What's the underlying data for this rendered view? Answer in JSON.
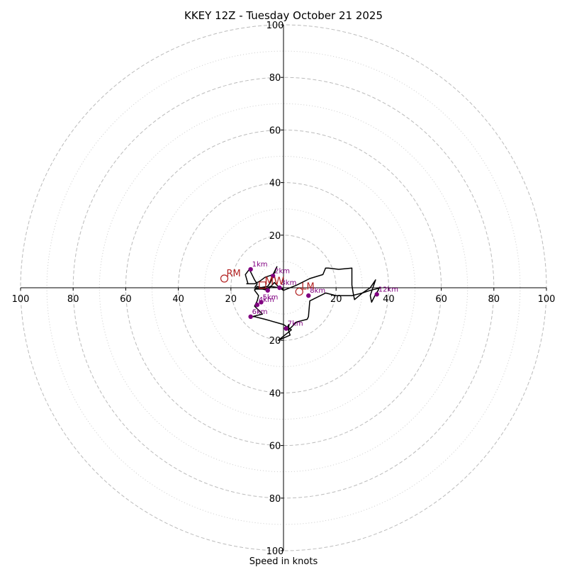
{
  "chart_data": {
    "type": "hodograph",
    "title": "KKEY 12Z - Tuesday October 21 2025",
    "xlabel": "Speed in knots",
    "xlim": [
      -100,
      100
    ],
    "ylim": [
      -100,
      100
    ],
    "rings": {
      "major": [
        20,
        40,
        60,
        80,
        100
      ],
      "minor": [
        10,
        30,
        50,
        70,
        90
      ],
      "major_color": "#bbbbbb",
      "minor_color": "#cccccc"
    },
    "axis_ticks": {
      "x": [
        {
          "value": -100,
          "label": "100"
        },
        {
          "value": -80,
          "label": "80"
        },
        {
          "value": -60,
          "label": "60"
        },
        {
          "value": -40,
          "label": "40"
        },
        {
          "value": -20,
          "label": "20"
        },
        {
          "value": 20,
          "label": "20"
        },
        {
          "value": 40,
          "label": "40"
        },
        {
          "value": 60,
          "label": "60"
        },
        {
          "value": 80,
          "label": "80"
        },
        {
          "value": 100,
          "label": "100"
        }
      ],
      "y": [
        {
          "value": 100,
          "label": "100"
        },
        {
          "value": 80,
          "label": "80"
        },
        {
          "value": 60,
          "label": "60"
        },
        {
          "value": 40,
          "label": "40"
        },
        {
          "value": 20,
          "label": "20"
        },
        {
          "value": -20,
          "label": "20"
        },
        {
          "value": -40,
          "label": "40"
        },
        {
          "value": -60,
          "label": "60"
        },
        {
          "value": -80,
          "label": "80"
        },
        {
          "value": -100,
          "label": "100"
        }
      ]
    },
    "trace": {
      "color": "#000000",
      "points": [
        [
          -11,
          0
        ],
        [
          -10,
          1.5
        ],
        [
          -11,
          3
        ],
        [
          -12,
          5
        ],
        [
          -13,
          7
        ],
        [
          -14.5,
          5
        ],
        [
          -13.5,
          1.5
        ],
        [
          -14,
          1.5
        ],
        [
          -11,
          1.5
        ],
        [
          -9,
          2.5
        ],
        [
          -7,
          4
        ],
        [
          -4,
          5
        ],
        [
          -2.5,
          8
        ],
        [
          -5,
          2
        ],
        [
          -6,
          0.5
        ],
        [
          -9,
          0
        ],
        [
          -11,
          -0.5
        ],
        [
          -8,
          -0.5
        ],
        [
          -6,
          -1
        ],
        [
          -3.5,
          2
        ],
        [
          -1.5,
          0
        ],
        [
          0,
          -1
        ],
        [
          5,
          1
        ],
        [
          10,
          3.5
        ],
        [
          15,
          5
        ],
        [
          16,
          7.5
        ],
        [
          17,
          7.5
        ],
        [
          21,
          7
        ],
        [
          26,
          7.5
        ],
        [
          26,
          4
        ],
        [
          26,
          1
        ],
        [
          26.5,
          -2
        ],
        [
          27,
          -4.5
        ],
        [
          30,
          -2
        ],
        [
          33,
          0
        ],
        [
          35,
          3
        ],
        [
          34,
          0
        ],
        [
          33,
          -3
        ],
        [
          33.5,
          -5.5
        ],
        [
          35,
          -2.5
        ],
        [
          36,
          -1
        ],
        [
          36.5,
          0.2
        ],
        [
          37,
          0
        ],
        [
          33,
          -1
        ],
        [
          30,
          -2
        ],
        [
          26,
          -3
        ],
        [
          20,
          -3
        ],
        [
          16,
          -2
        ],
        [
          10,
          -5
        ],
        [
          9.5,
          -11
        ],
        [
          9,
          -12
        ],
        [
          5,
          -13
        ],
        [
          2,
          -16
        ],
        [
          2,
          -14
        ],
        [
          1.5,
          -15
        ],
        [
          2.5,
          -18
        ],
        [
          -2,
          -20
        ],
        [
          3,
          -16
        ],
        [
          0,
          -14
        ],
        [
          -7,
          -12
        ],
        [
          -11,
          -11
        ],
        [
          -12,
          -11
        ],
        [
          -8,
          -10
        ],
        [
          -11,
          -7
        ],
        [
          -10,
          -5
        ],
        [
          -9.5,
          -3
        ],
        [
          -11,
          -1
        ],
        [
          -10,
          0.5
        ],
        [
          -7,
          -0.5
        ],
        [
          -5,
          0.5
        ],
        [
          -1.5,
          0
        ],
        [
          0,
          -0.5
        ]
      ]
    },
    "height_markers": {
      "color": "#800080",
      "points": [
        {
          "label": "1km",
          "u": -12.5,
          "v": 7
        },
        {
          "label": "2km",
          "u": -4,
          "v": 4.5
        },
        {
          "label": "3km",
          "u": -1.5,
          "v": 0
        },
        {
          "label": "",
          "u": -6,
          "v": -1
        },
        {
          "label": "5km",
          "u": -8.5,
          "v": -5.5
        },
        {
          "label": "4km",
          "u": -10,
          "v": -6.5
        },
        {
          "label": "6km",
          "u": -12.5,
          "v": -11
        },
        {
          "label": "7km",
          "u": 1,
          "v": -15.5
        },
        {
          "label": "8km",
          "u": 9.5,
          "v": -3
        },
        {
          "label": "12km",
          "u": 35.5,
          "v": -2.5
        }
      ]
    },
    "storm_motion": {
      "color": "#b22222",
      "markers": [
        {
          "label": "RM",
          "u": -22.5,
          "v": 3.5,
          "style": "circle"
        },
        {
          "label": "LM",
          "u": 6,
          "v": -1.5,
          "style": "circle"
        },
        {
          "label": "MW",
          "u": -8,
          "v": 1,
          "style": "square"
        }
      ]
    }
  }
}
